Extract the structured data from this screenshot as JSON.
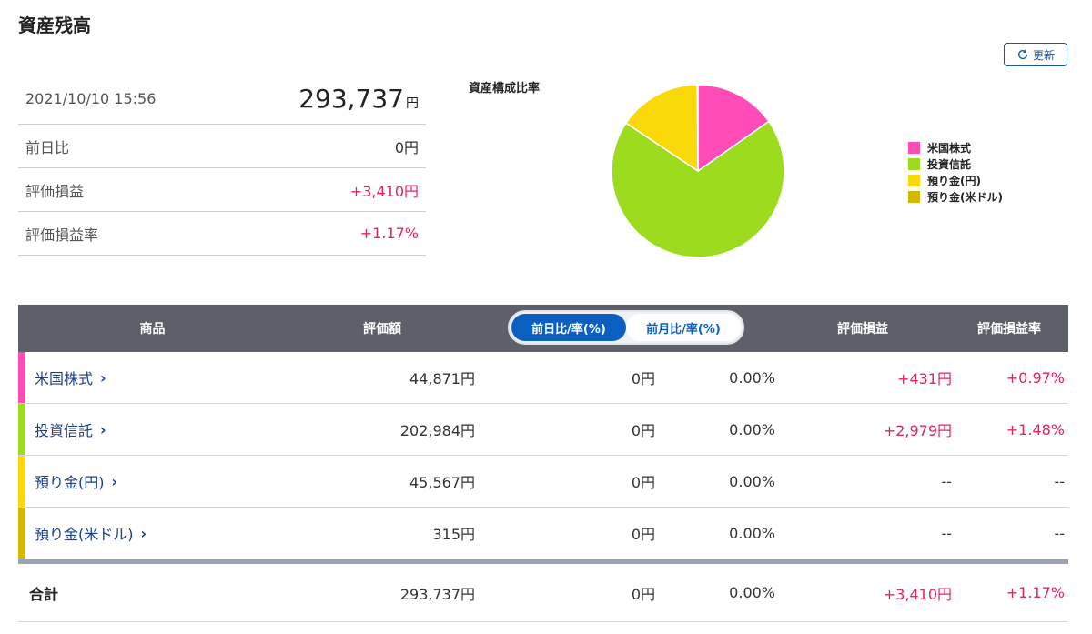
{
  "page": {
    "title": "資産残高"
  },
  "refresh": {
    "label": "更新",
    "icon": "refresh-icon"
  },
  "summary": {
    "timestamp": "2021/10/10 15:56",
    "total_amount": "293,737",
    "total_unit": "円",
    "rows": [
      {
        "label": "前日比",
        "value": "0円",
        "tone": "plain"
      },
      {
        "label": "評価損益",
        "value": "+3,410円",
        "tone": "pos"
      },
      {
        "label": "評価損益率",
        "value": "+1.17%",
        "tone": "pos"
      }
    ]
  },
  "chart": {
    "title": "資産構成比率",
    "colors": {
      "us_stocks": "#ff4cb8",
      "funds": "#9ddb1e",
      "jpy_cash": "#f9d90a",
      "usd_cash": "#d4b800"
    }
  },
  "chart_data": {
    "type": "pie",
    "title": "資産構成比率",
    "labels": [
      "米国株式",
      "投資信託",
      "預り金(円)",
      "預り金(米ドル)"
    ],
    "values": [
      44871,
      202984,
      45567,
      315
    ],
    "colors": [
      "#ff4cb8",
      "#9ddb1e",
      "#f9d90a",
      "#d4b800"
    ],
    "legend_position": "right"
  },
  "table": {
    "headers": {
      "product": "商品",
      "valuation": "評価額",
      "pl": "評価損益",
      "pl_rate": "評価損益率"
    },
    "toggle": {
      "daily": "前日比/率(%)",
      "monthly": "前月比/率(%)",
      "selected": "daily"
    },
    "rows": [
      {
        "name": "米国株式",
        "valuation": "44,871円",
        "day_yen": "0円",
        "day_rate": "0.00%",
        "pl": "+431円",
        "pl_rate": "+0.97%",
        "color": "#ff4cb8"
      },
      {
        "name": "投資信託",
        "valuation": "202,984円",
        "day_yen": "0円",
        "day_rate": "0.00%",
        "pl": "+2,979円",
        "pl_rate": "+1.48%",
        "color": "#9ddb1e"
      },
      {
        "name": "預り金(円)",
        "valuation": "45,567円",
        "day_yen": "0円",
        "day_rate": "0.00%",
        "pl": "--",
        "pl_rate": "--",
        "color": "#f9d90a"
      },
      {
        "name": "預り金(米ドル)",
        "valuation": "315円",
        "day_yen": "0円",
        "day_rate": "0.00%",
        "pl": "--",
        "pl_rate": "--",
        "color": "#d4b800"
      }
    ],
    "total": {
      "label": "合計",
      "valuation": "293,737円",
      "day_yen": "0円",
      "day_rate": "0.00%",
      "pl": "+3,410円",
      "pl_rate": "+1.17%"
    },
    "chevron": "›"
  }
}
